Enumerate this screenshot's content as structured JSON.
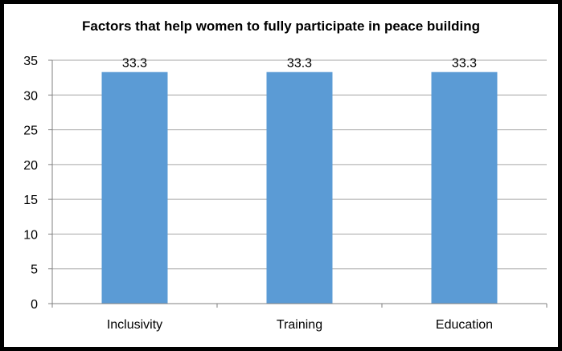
{
  "chart_data": {
    "type": "bar",
    "title": "Factors that help women to fully participate in peace building",
    "categories": [
      "Inclusivity",
      "Training",
      "Education"
    ],
    "values": [
      33.3,
      33.3,
      33.3
    ],
    "data_labels": [
      "33.3",
      "33.3",
      "33.3"
    ],
    "xlabel": "",
    "ylabel": "",
    "ylim": [
      0,
      35
    ],
    "yticks": [
      0,
      5,
      10,
      15,
      20,
      25,
      30,
      35
    ],
    "grid": true,
    "legend": "none",
    "bar_color": "#5B9BD5",
    "gridline_color": "#A6A6A6"
  }
}
